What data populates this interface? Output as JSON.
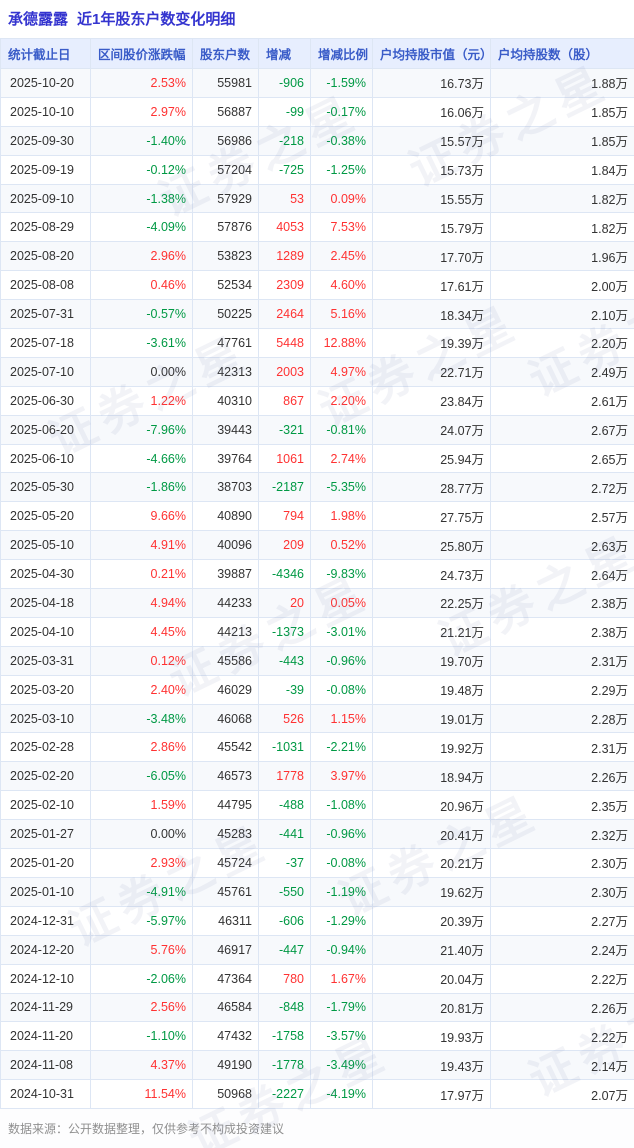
{
  "title": {
    "stock_name": "承德露露",
    "suffix": "近1年股东户数变化明细"
  },
  "colors": {
    "positive": "#ff3232",
    "negative": "#009944",
    "header_bg": "#e7eefe",
    "header_text": "#3a5cc8",
    "title_text": "#3434cf"
  },
  "watermark": {
    "text": "证券之星"
  },
  "table": {
    "columns": [
      "统计截止日",
      "区间股价涨跌幅",
      "股东户数",
      "增减",
      "增减比例",
      "户均持股市值（元）",
      "户均持股数（股）"
    ],
    "rows": [
      {
        "date": "2025-10-20",
        "change_pct": "2.53%",
        "holders": "55981",
        "delta": "-906",
        "delta_pct": "-1.59%",
        "avg_value": "16.73万",
        "avg_shares": "1.88万"
      },
      {
        "date": "2025-10-10",
        "change_pct": "2.97%",
        "holders": "56887",
        "delta": "-99",
        "delta_pct": "-0.17%",
        "avg_value": "16.06万",
        "avg_shares": "1.85万"
      },
      {
        "date": "2025-09-30",
        "change_pct": "-1.40%",
        "holders": "56986",
        "delta": "-218",
        "delta_pct": "-0.38%",
        "avg_value": "15.57万",
        "avg_shares": "1.85万"
      },
      {
        "date": "2025-09-19",
        "change_pct": "-0.12%",
        "holders": "57204",
        "delta": "-725",
        "delta_pct": "-1.25%",
        "avg_value": "15.73万",
        "avg_shares": "1.84万"
      },
      {
        "date": "2025-09-10",
        "change_pct": "-1.38%",
        "holders": "57929",
        "delta": "53",
        "delta_pct": "0.09%",
        "avg_value": "15.55万",
        "avg_shares": "1.82万"
      },
      {
        "date": "2025-08-29",
        "change_pct": "-4.09%",
        "holders": "57876",
        "delta": "4053",
        "delta_pct": "7.53%",
        "avg_value": "15.79万",
        "avg_shares": "1.82万"
      },
      {
        "date": "2025-08-20",
        "change_pct": "2.96%",
        "holders": "53823",
        "delta": "1289",
        "delta_pct": "2.45%",
        "avg_value": "17.70万",
        "avg_shares": "1.96万"
      },
      {
        "date": "2025-08-08",
        "change_pct": "0.46%",
        "holders": "52534",
        "delta": "2309",
        "delta_pct": "4.60%",
        "avg_value": "17.61万",
        "avg_shares": "2.00万"
      },
      {
        "date": "2025-07-31",
        "change_pct": "-0.57%",
        "holders": "50225",
        "delta": "2464",
        "delta_pct": "5.16%",
        "avg_value": "18.34万",
        "avg_shares": "2.10万"
      },
      {
        "date": "2025-07-18",
        "change_pct": "-3.61%",
        "holders": "47761",
        "delta": "5448",
        "delta_pct": "12.88%",
        "avg_value": "19.39万",
        "avg_shares": "2.20万"
      },
      {
        "date": "2025-07-10",
        "change_pct": "0.00%",
        "holders": "42313",
        "delta": "2003",
        "delta_pct": "4.97%",
        "avg_value": "22.71万",
        "avg_shares": "2.49万"
      },
      {
        "date": "2025-06-30",
        "change_pct": "1.22%",
        "holders": "40310",
        "delta": "867",
        "delta_pct": "2.20%",
        "avg_value": "23.84万",
        "avg_shares": "2.61万"
      },
      {
        "date": "2025-06-20",
        "change_pct": "-7.96%",
        "holders": "39443",
        "delta": "-321",
        "delta_pct": "-0.81%",
        "avg_value": "24.07万",
        "avg_shares": "2.67万"
      },
      {
        "date": "2025-06-10",
        "change_pct": "-4.66%",
        "holders": "39764",
        "delta": "1061",
        "delta_pct": "2.74%",
        "avg_value": "25.94万",
        "avg_shares": "2.65万"
      },
      {
        "date": "2025-05-30",
        "change_pct": "-1.86%",
        "holders": "38703",
        "delta": "-2187",
        "delta_pct": "-5.35%",
        "avg_value": "28.77万",
        "avg_shares": "2.72万"
      },
      {
        "date": "2025-05-20",
        "change_pct": "9.66%",
        "holders": "40890",
        "delta": "794",
        "delta_pct": "1.98%",
        "avg_value": "27.75万",
        "avg_shares": "2.57万"
      },
      {
        "date": "2025-05-10",
        "change_pct": "4.91%",
        "holders": "40096",
        "delta": "209",
        "delta_pct": "0.52%",
        "avg_value": "25.80万",
        "avg_shares": "2.63万"
      },
      {
        "date": "2025-04-30",
        "change_pct": "0.21%",
        "holders": "39887",
        "delta": "-4346",
        "delta_pct": "-9.83%",
        "avg_value": "24.73万",
        "avg_shares": "2.64万"
      },
      {
        "date": "2025-04-18",
        "change_pct": "4.94%",
        "holders": "44233",
        "delta": "20",
        "delta_pct": "0.05%",
        "avg_value": "22.25万",
        "avg_shares": "2.38万"
      },
      {
        "date": "2025-04-10",
        "change_pct": "4.45%",
        "holders": "44213",
        "delta": "-1373",
        "delta_pct": "-3.01%",
        "avg_value": "21.21万",
        "avg_shares": "2.38万"
      },
      {
        "date": "2025-03-31",
        "change_pct": "0.12%",
        "holders": "45586",
        "delta": "-443",
        "delta_pct": "-0.96%",
        "avg_value": "19.70万",
        "avg_shares": "2.31万"
      },
      {
        "date": "2025-03-20",
        "change_pct": "2.40%",
        "holders": "46029",
        "delta": "-39",
        "delta_pct": "-0.08%",
        "avg_value": "19.48万",
        "avg_shares": "2.29万"
      },
      {
        "date": "2025-03-10",
        "change_pct": "-3.48%",
        "holders": "46068",
        "delta": "526",
        "delta_pct": "1.15%",
        "avg_value": "19.01万",
        "avg_shares": "2.28万"
      },
      {
        "date": "2025-02-28",
        "change_pct": "2.86%",
        "holders": "45542",
        "delta": "-1031",
        "delta_pct": "-2.21%",
        "avg_value": "19.92万",
        "avg_shares": "2.31万"
      },
      {
        "date": "2025-02-20",
        "change_pct": "-6.05%",
        "holders": "46573",
        "delta": "1778",
        "delta_pct": "3.97%",
        "avg_value": "18.94万",
        "avg_shares": "2.26万"
      },
      {
        "date": "2025-02-10",
        "change_pct": "1.59%",
        "holders": "44795",
        "delta": "-488",
        "delta_pct": "-1.08%",
        "avg_value": "20.96万",
        "avg_shares": "2.35万"
      },
      {
        "date": "2025-01-27",
        "change_pct": "0.00%",
        "holders": "45283",
        "delta": "-441",
        "delta_pct": "-0.96%",
        "avg_value": "20.41万",
        "avg_shares": "2.32万"
      },
      {
        "date": "2025-01-20",
        "change_pct": "2.93%",
        "holders": "45724",
        "delta": "-37",
        "delta_pct": "-0.08%",
        "avg_value": "20.21万",
        "avg_shares": "2.30万"
      },
      {
        "date": "2025-01-10",
        "change_pct": "-4.91%",
        "holders": "45761",
        "delta": "-550",
        "delta_pct": "-1.19%",
        "avg_value": "19.62万",
        "avg_shares": "2.30万"
      },
      {
        "date": "2024-12-31",
        "change_pct": "-5.97%",
        "holders": "46311",
        "delta": "-606",
        "delta_pct": "-1.29%",
        "avg_value": "20.39万",
        "avg_shares": "2.27万"
      },
      {
        "date": "2024-12-20",
        "change_pct": "5.76%",
        "holders": "46917",
        "delta": "-447",
        "delta_pct": "-0.94%",
        "avg_value": "21.40万",
        "avg_shares": "2.24万"
      },
      {
        "date": "2024-12-10",
        "change_pct": "-2.06%",
        "holders": "47364",
        "delta": "780",
        "delta_pct": "1.67%",
        "avg_value": "20.04万",
        "avg_shares": "2.22万"
      },
      {
        "date": "2024-11-29",
        "change_pct": "2.56%",
        "holders": "46584",
        "delta": "-848",
        "delta_pct": "-1.79%",
        "avg_value": "20.81万",
        "avg_shares": "2.26万"
      },
      {
        "date": "2024-11-20",
        "change_pct": "-1.10%",
        "holders": "47432",
        "delta": "-1758",
        "delta_pct": "-3.57%",
        "avg_value": "19.93万",
        "avg_shares": "2.22万"
      },
      {
        "date": "2024-11-08",
        "change_pct": "4.37%",
        "holders": "49190",
        "delta": "-1778",
        "delta_pct": "-3.49%",
        "avg_value": "19.43万",
        "avg_shares": "2.14万"
      },
      {
        "date": "2024-10-31",
        "change_pct": "11.54%",
        "holders": "50968",
        "delta": "-2227",
        "delta_pct": "-4.19%",
        "avg_value": "17.97万",
        "avg_shares": "2.07万"
      }
    ]
  },
  "footer": {
    "note": "数据来源：公开数据整理，仅供参考不构成投资建议"
  }
}
